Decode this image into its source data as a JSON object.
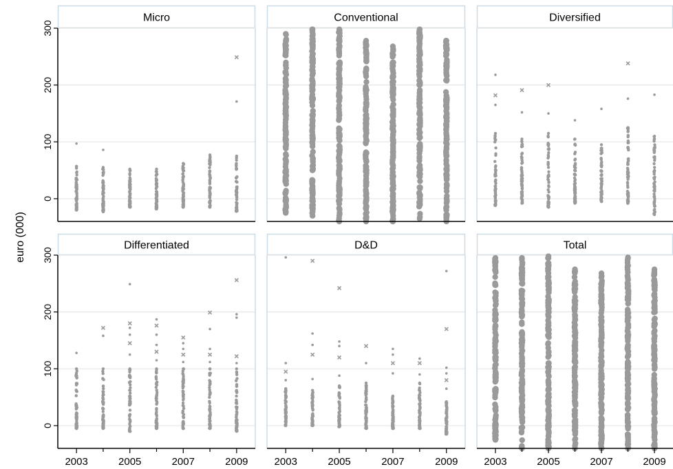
{
  "chart_data": {
    "type": "scatter",
    "ylabel": "euro (000)",
    "ylim": [
      -40,
      300
    ],
    "xlim": [
      2002.3,
      2009.7
    ],
    "yticks": [
      0,
      100,
      200,
      300
    ],
    "xticks": [
      2003,
      2005,
      2007,
      2009
    ],
    "grid": true,
    "point_color": "#9a9a9a",
    "panels": [
      {
        "title": "Micro",
        "series": [
          {
            "year": 2003,
            "min": -20,
            "max": 57,
            "outliers": [
              97
            ]
          },
          {
            "year": 2004,
            "min": -23,
            "max": 55,
            "outliers": [
              86
            ]
          },
          {
            "year": 2005,
            "min": -15,
            "max": 52,
            "outliers": []
          },
          {
            "year": 2006,
            "min": -18,
            "max": 52,
            "outliers": []
          },
          {
            "year": 2007,
            "min": -15,
            "max": 62,
            "outliers": []
          },
          {
            "year": 2008,
            "min": -15,
            "max": 77,
            "outliers": []
          },
          {
            "year": 2009,
            "min": -22,
            "max": 75,
            "outliers": [
              171,
              249
            ]
          }
        ]
      },
      {
        "title": "Conventional",
        "series": [
          {
            "year": 2003,
            "min": -25,
            "max": 290,
            "outliers": []
          },
          {
            "year": 2004,
            "min": -30,
            "max": 298,
            "outliers": []
          },
          {
            "year": 2005,
            "min": -40,
            "max": 298,
            "outliers": []
          },
          {
            "year": 2006,
            "min": -40,
            "max": 278,
            "outliers": []
          },
          {
            "year": 2007,
            "min": -40,
            "max": 268,
            "outliers": []
          },
          {
            "year": 2008,
            "min": -35,
            "max": 298,
            "outliers": []
          },
          {
            "year": 2009,
            "min": -40,
            "max": 278,
            "outliers": []
          }
        ]
      },
      {
        "title": "Diversified",
        "series": [
          {
            "year": 2003,
            "min": -12,
            "max": 115,
            "outliers": [
              165,
              182,
              218
            ]
          },
          {
            "year": 2004,
            "min": -8,
            "max": 105,
            "outliers": [
              152,
              191
            ]
          },
          {
            "year": 2005,
            "min": -15,
            "max": 115,
            "outliers": [
              150,
              200
            ]
          },
          {
            "year": 2006,
            "min": -8,
            "max": 105,
            "outliers": [
              138
            ]
          },
          {
            "year": 2007,
            "min": -5,
            "max": 95,
            "outliers": [
              158
            ]
          },
          {
            "year": 2008,
            "min": -8,
            "max": 125,
            "outliers": [
              176,
              238
            ]
          },
          {
            "year": 2009,
            "min": -28,
            "max": 110,
            "outliers": [
              183
            ]
          }
        ]
      },
      {
        "title": "Differentiated",
        "series": [
          {
            "year": 2003,
            "min": -5,
            "max": 100,
            "outliers": [
              128
            ]
          },
          {
            "year": 2004,
            "min": -5,
            "max": 100,
            "outliers": [
              158,
              172
            ]
          },
          {
            "year": 2005,
            "min": -10,
            "max": 100,
            "outliers": [
              125,
              145,
              160,
              172,
              180,
              249
            ]
          },
          {
            "year": 2006,
            "min": -5,
            "max": 100,
            "outliers": [
              115,
              130,
              142,
              160,
              176,
              187
            ]
          },
          {
            "year": 2007,
            "min": -5,
            "max": 100,
            "outliers": [
              112,
              125,
              135,
              145,
              155
            ]
          },
          {
            "year": 2008,
            "min": -5,
            "max": 100,
            "outliers": [
              112,
              125,
              135,
              170,
              199
            ]
          },
          {
            "year": 2009,
            "min": -10,
            "max": 100,
            "outliers": [
              110,
              122,
              190,
              196,
              256
            ]
          }
        ]
      },
      {
        "title": "D&D",
        "series": [
          {
            "year": 2003,
            "min": 0,
            "max": 65,
            "outliers": [
              80,
              95,
              110,
              296
            ]
          },
          {
            "year": 2004,
            "min": 0,
            "max": 62,
            "outliers": [
              82,
              125,
              142,
              162,
              290
            ]
          },
          {
            "year": 2005,
            "min": -2,
            "max": 70,
            "outliers": [
              88,
              120,
              140,
              148,
              242
            ]
          },
          {
            "year": 2006,
            "min": -5,
            "max": 75,
            "outliers": [
              110,
              140
            ]
          },
          {
            "year": 2007,
            "min": -5,
            "max": 52,
            "outliers": [
              92,
              110,
              125,
              135
            ]
          },
          {
            "year": 2008,
            "min": -5,
            "max": 75,
            "outliers": [
              90,
              110,
              118
            ]
          },
          {
            "year": 2009,
            "min": -15,
            "max": 42,
            "outliers": [
              65,
              80,
              92,
              102,
              170,
              272
            ]
          }
        ]
      },
      {
        "title": "Total",
        "series": [
          {
            "year": 2003,
            "min": -25,
            "max": 295,
            "outliers": []
          },
          {
            "year": 2004,
            "min": -40,
            "max": 295,
            "outliers": []
          },
          {
            "year": 2005,
            "min": -40,
            "max": 298,
            "outliers": []
          },
          {
            "year": 2006,
            "min": -40,
            "max": 275,
            "outliers": []
          },
          {
            "year": 2007,
            "min": -40,
            "max": 268,
            "outliers": []
          },
          {
            "year": 2008,
            "min": -40,
            "max": 296,
            "outliers": []
          },
          {
            "year": 2009,
            "min": -40,
            "max": 275,
            "outliers": []
          }
        ]
      }
    ]
  }
}
